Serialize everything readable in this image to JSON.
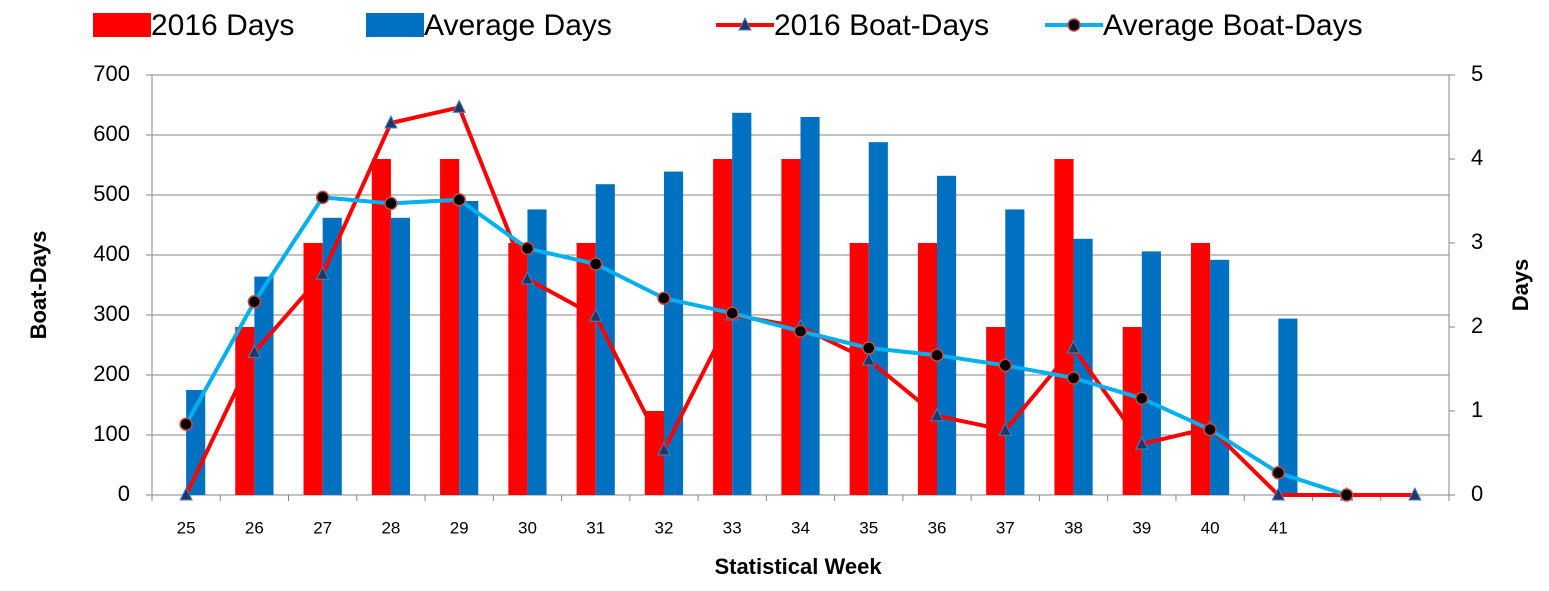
{
  "chart_data": {
    "type": "bar-line",
    "x_label": "Statistical Week",
    "y_label": "Boat-Days",
    "y2_label": "Days",
    "categories": [
      "25",
      "26",
      "27",
      "28",
      "29",
      "30",
      "31",
      "32",
      "33",
      "34",
      "35",
      "36",
      "37",
      "38",
      "39",
      "40",
      "41",
      null,
      null
    ],
    "ylim": [
      0,
      700
    ],
    "yticks": [
      0,
      100,
      200,
      300,
      400,
      500,
      600,
      700
    ],
    "y2lim": [
      0,
      5
    ],
    "y2ticks": [
      0,
      1,
      2,
      3,
      4,
      5
    ],
    "grid": true,
    "legend": "top",
    "series": [
      {
        "name": "2016 Days",
        "kind": "bar",
        "axis": "y2",
        "color": "#ff0000",
        "values": [
          0,
          2,
          3,
          4,
          4,
          3,
          3,
          1,
          4,
          4,
          3,
          3,
          2,
          4,
          2,
          3,
          0,
          0,
          0
        ]
      },
      {
        "name": "Average Days",
        "kind": "bar",
        "axis": "y2",
        "color": "#0070c0",
        "values": [
          1.25,
          2.6,
          3.3,
          3.3,
          3.5,
          3.4,
          3.7,
          3.85,
          4.55,
          4.5,
          4.2,
          3.8,
          3.4,
          3.05,
          2.9,
          2.8,
          2.1,
          0,
          0
        ]
      },
      {
        "name": "2016 Boat-Days",
        "kind": "line",
        "marker": "triangle",
        "color": "#ff0000",
        "values": [
          0,
          238,
          368,
          620,
          646,
          360,
          298,
          75,
          300,
          280,
          225,
          132,
          108,
          245,
          85,
          112,
          0,
          0,
          0
        ]
      },
      {
        "name": "Average Boat-Days",
        "kind": "line",
        "marker": "circle",
        "color": "#00b0f0",
        "values": [
          118,
          322,
          496,
          486,
          492,
          411,
          385,
          328,
          303,
          273,
          245,
          233,
          216,
          195,
          161,
          109,
          37,
          0,
          null
        ]
      }
    ]
  }
}
